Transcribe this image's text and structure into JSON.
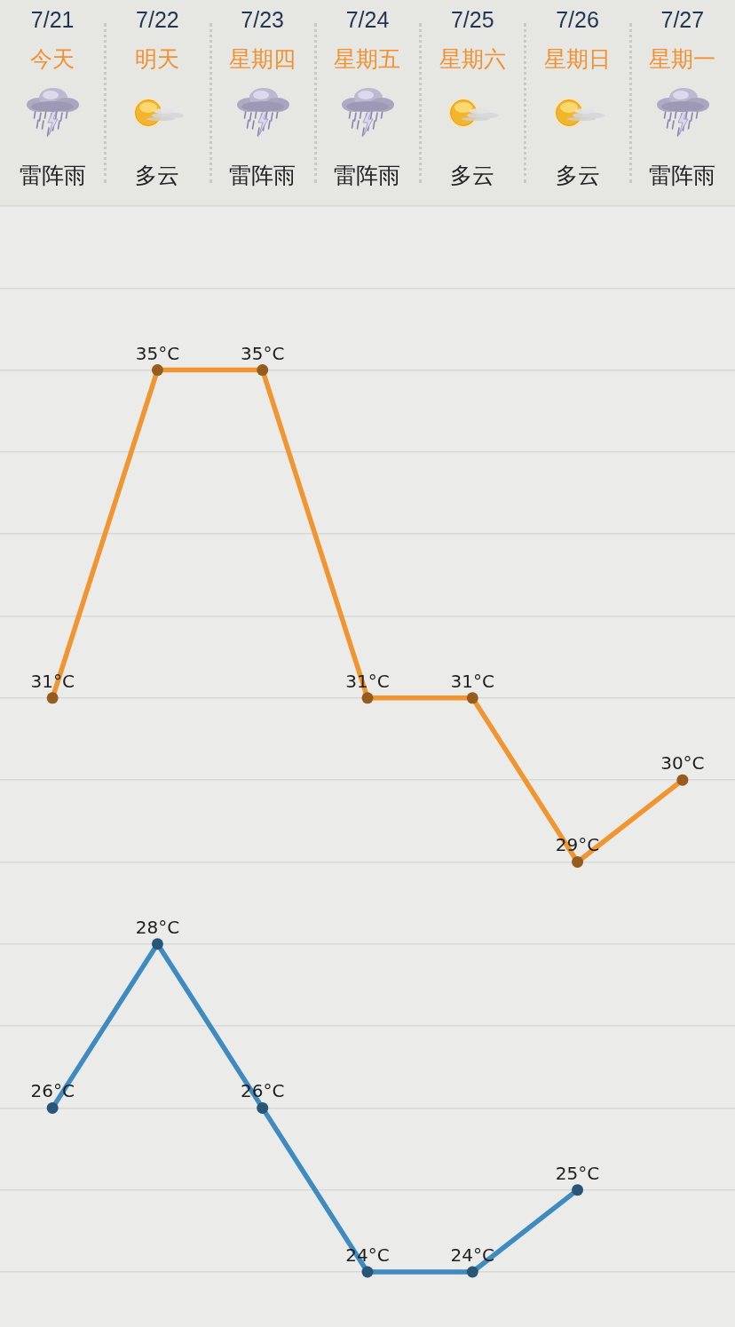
{
  "chart_data": {
    "type": "line",
    "categories": [
      "7/21",
      "7/22",
      "7/23",
      "7/24",
      "7/25",
      "7/26",
      "7/27"
    ],
    "series": [
      {
        "color": "#f0952f",
        "values": [
          31,
          35,
          35,
          31,
          31,
          29,
          30
        ],
        "value_labels": [
          "31°C",
          "35°C",
          "35°C",
          "31°C",
          "31°C",
          "29°C",
          "30°C"
        ]
      },
      {
        "color": "#3f8bc0",
        "values": [
          26,
          28,
          26,
          24,
          24,
          25,
          null
        ],
        "value_labels": [
          "26°C",
          "28°C",
          "26°C",
          "24°C",
          "24°C",
          "25°C",
          null
        ]
      }
    ],
    "annotations": [
      "今天",
      "明天",
      "星期四",
      "星期五",
      "星期六",
      "星期日",
      "星期一",
      "雷阵雨",
      "多云",
      "雷阵雨",
      "雷阵雨",
      "多云",
      "多云",
      "雷阵雨"
    ],
    "ylim": [
      24,
      37
    ],
    "yticks": [
      {
        "value": 24,
        "label": null
      },
      {
        "value": 25,
        "label": null
      },
      {
        "value": 26,
        "label": null
      },
      {
        "value": 27,
        "label": null
      },
      {
        "value": 28,
        "label": null
      },
      {
        "value": 29,
        "label": null
      },
      {
        "value": 30,
        "label": null
      },
      {
        "value": 31,
        "label": null
      },
      {
        "value": 32,
        "label": null
      },
      {
        "value": 33,
        "label": null
      },
      {
        "value": 34,
        "label": null
      },
      {
        "value": 35,
        "label": null
      },
      {
        "value": 36,
        "label": null
      },
      {
        "value": 37,
        "label": null
      }
    ],
    "grid": "y",
    "tick_labels": "x",
    "marker": "circle",
    "line_style": "solid"
  }
}
